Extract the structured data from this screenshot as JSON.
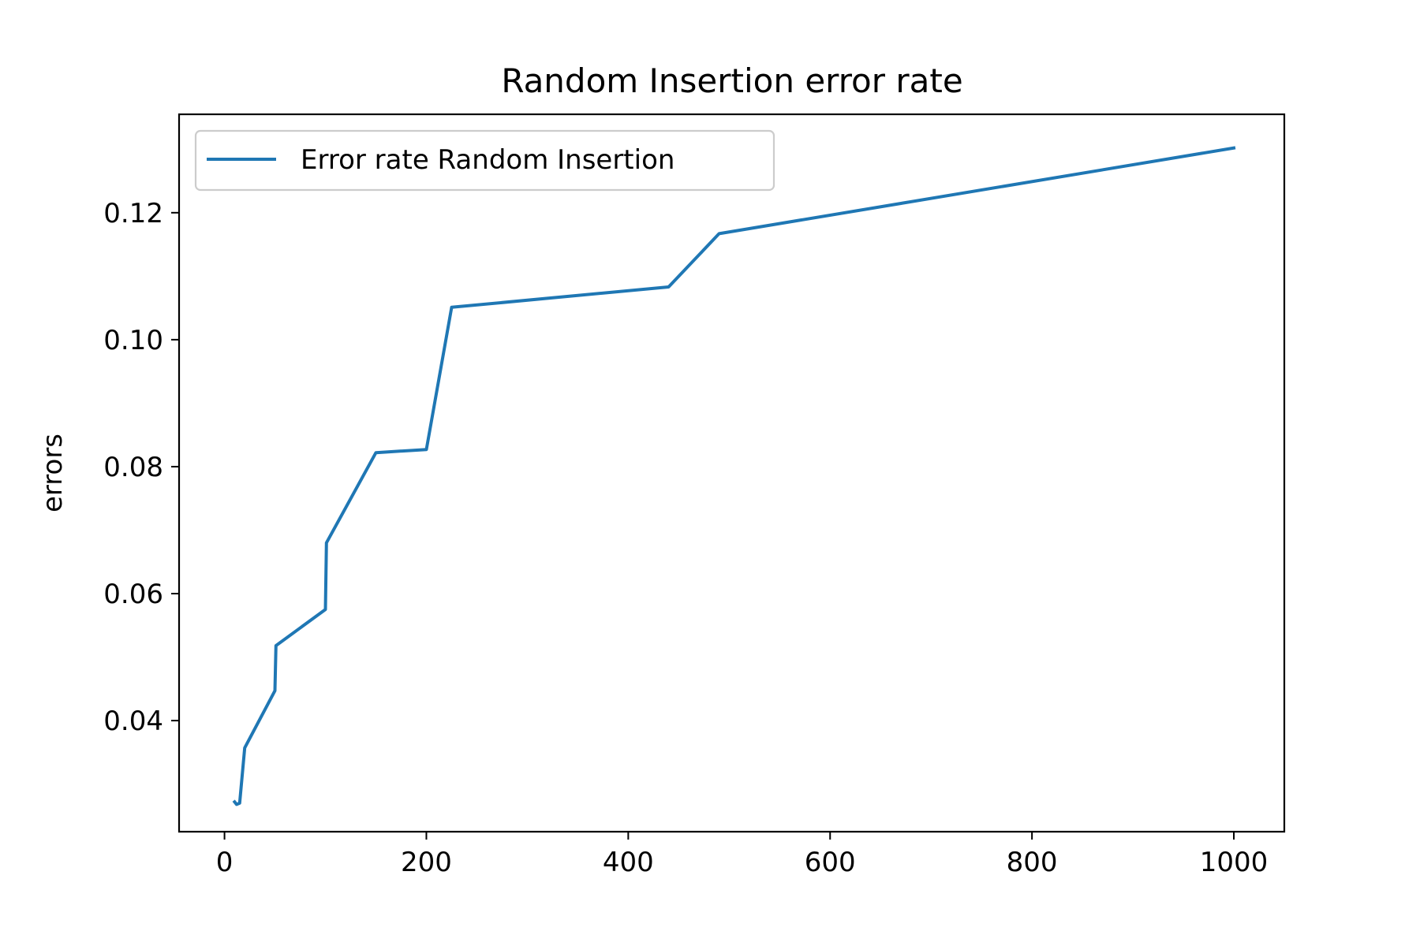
{
  "chart_data": {
    "type": "line",
    "title": "Random Insertion error rate",
    "xlabel": "",
    "ylabel": "errors",
    "xlim": [
      -45,
      1050
    ],
    "ylim": [
      0.0225,
      0.1355
    ],
    "xticks": [
      0,
      200,
      400,
      600,
      800,
      1000
    ],
    "yticks": [
      0.04,
      0.06,
      0.08,
      0.1,
      0.12
    ],
    "xtick_labels": [
      "0",
      "200",
      "400",
      "600",
      "800",
      "1000"
    ],
    "ytick_labels": [
      "0.04",
      "0.06",
      "0.08",
      "0.10",
      "0.12"
    ],
    "grid": false,
    "legend_position": "upper-left",
    "series": [
      {
        "name": "Error rate Random Insertion",
        "color": "#1f77b4",
        "x": [
          10,
          12,
          15,
          20,
          50,
          51,
          100,
          101,
          150,
          200,
          225,
          440,
          490,
          1000
        ],
        "y": [
          0.0272,
          0.0268,
          0.027,
          0.0357,
          0.0447,
          0.0518,
          0.0575,
          0.068,
          0.0822,
          0.0827,
          0.1051,
          0.1083,
          0.1167,
          0.1302
        ]
      }
    ]
  }
}
